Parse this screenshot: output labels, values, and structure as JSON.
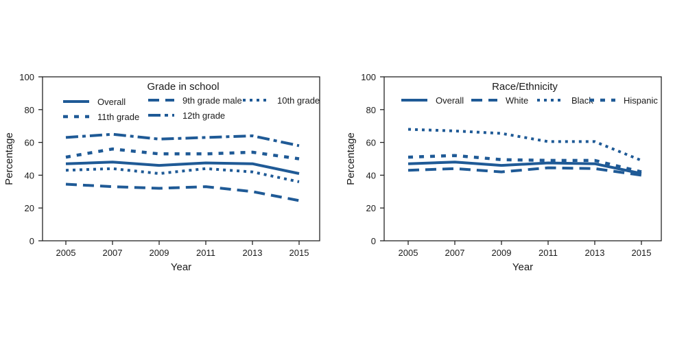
{
  "colors": {
    "series": "#1f5a96",
    "axis": "#222222",
    "text": "#1a1a1a"
  },
  "chart_data": [
    {
      "type": "line",
      "title": "Grade in school",
      "xlabel": "Year",
      "ylabel": "Percentage",
      "x": [
        2005,
        2007,
        2009,
        2011,
        2013,
        2015
      ],
      "ylim": [
        0,
        100
      ],
      "yticks": [
        0,
        20,
        40,
        60,
        80,
        100
      ],
      "grid": false,
      "series": [
        {
          "name": "Overall",
          "style": "solid",
          "values": [
            47,
            48,
            46,
            47.5,
            47,
            41
          ]
        },
        {
          "name": "9th grade male",
          "style": "dashed",
          "values": [
            34.5,
            33,
            32,
            33,
            30,
            24.5
          ]
        },
        {
          "name": "10th grade",
          "style": "dotted",
          "values": [
            43,
            44,
            41,
            44,
            42,
            36
          ]
        },
        {
          "name": "11th grade",
          "style": "shortdash",
          "values": [
            51,
            56,
            53,
            53,
            54,
            50
          ]
        },
        {
          "name": "12th grade",
          "style": "dashdot",
          "values": [
            63,
            65,
            62,
            63,
            64,
            58
          ]
        }
      ]
    },
    {
      "type": "line",
      "title": "Race/Ethnicity",
      "xlabel": "Year",
      "ylabel": "Percentage",
      "x": [
        2005,
        2007,
        2009,
        2011,
        2013,
        2015
      ],
      "ylim": [
        0,
        100
      ],
      "yticks": [
        0,
        20,
        40,
        60,
        80,
        100
      ],
      "grid": false,
      "series": [
        {
          "name": "Overall",
          "style": "solid",
          "values": [
            47,
            48,
            46,
            47.5,
            47,
            41
          ]
        },
        {
          "name": "White",
          "style": "dashed",
          "values": [
            43,
            44,
            42,
            44.5,
            44,
            40
          ]
        },
        {
          "name": "Black",
          "style": "dotted",
          "values": [
            68,
            67,
            65.5,
            60.5,
            60.5,
            49
          ]
        },
        {
          "name": "Hispanic",
          "style": "shortdash",
          "values": [
            51,
            52,
            49.5,
            49,
            49,
            42
          ]
        }
      ]
    }
  ]
}
